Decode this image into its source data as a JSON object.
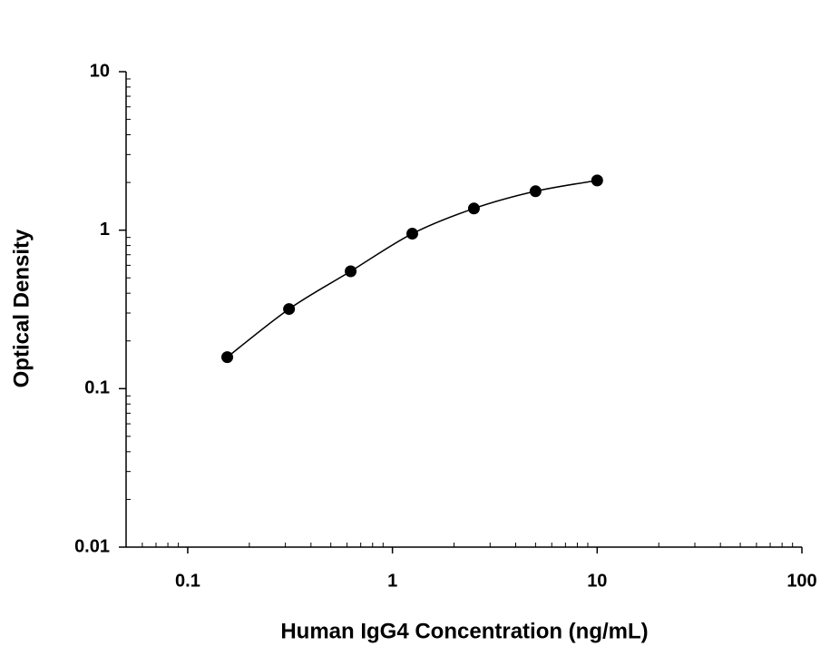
{
  "chart_data": {
    "type": "scatter",
    "x_label": "Human IgG4 Concentration (ng/mL)",
    "y_label": "Optical Density",
    "log_x": true,
    "log_y": true,
    "minor_ticks": true,
    "xlim": [
      0.05,
      100
    ],
    "xticks": [
      0.1,
      1,
      10,
      100
    ],
    "ylim": [
      0.01,
      10
    ],
    "yticks": [
      0.01,
      0.1,
      1,
      10
    ],
    "series": [
      {
        "color": "#000000",
        "fit_curve": true,
        "x": [
          0.156,
          0.3125,
          0.625,
          1.25,
          2.5,
          5,
          10
        ],
        "values": [
          0.158,
          0.318,
          0.55,
          0.95,
          1.37,
          1.76,
          2.06
        ]
      }
    ]
  }
}
